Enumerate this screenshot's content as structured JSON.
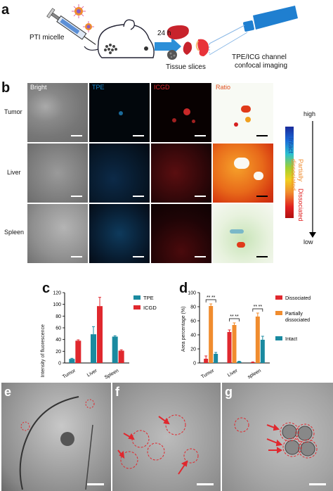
{
  "panel_a": {
    "label": "a",
    "micelle_text": "PTI micelle",
    "time_text": "24 h",
    "slices_text": "Tissue slices",
    "imaging_text_1": "TPE/ICG channel",
    "imaging_text_2": "confocal imaging"
  },
  "panel_b": {
    "label": "b",
    "columns": [
      "Bright",
      "TPE",
      "ICGD",
      "Ratio"
    ],
    "rows": [
      "Tumor",
      "Liver",
      "Spleen"
    ],
    "colorbar": {
      "high": "high",
      "low": "low",
      "intact": "Intact",
      "partially_1": "Partially",
      "partially_2": "dissociated",
      "dissociated": "Dissociated"
    }
  },
  "chart_c": {
    "label": "c",
    "chart_data": {
      "type": "bar",
      "ylabel": "Intensity of fluorescence",
      "categories": [
        "Tumor",
        "Liver",
        "Spleen"
      ],
      "ylim": [
        0,
        120
      ],
      "yticks": [
        0,
        20,
        40,
        60,
        80,
        100,
        120
      ],
      "series": [
        {
          "name": "TPE",
          "color": "#1a8aa0",
          "values": [
            7,
            49,
            45
          ],
          "errors": [
            1,
            13,
            1.5
          ]
        },
        {
          "name": "ICGD",
          "color": "#e0282e",
          "values": [
            38,
            97,
            21
          ],
          "errors": [
            1.5,
            15,
            1.5
          ]
        }
      ],
      "legend_position": "top-right"
    }
  },
  "chart_d": {
    "label": "d",
    "chart_data": {
      "type": "bar",
      "ylabel": "Area percentage (%)",
      "categories": [
        "Tumor",
        "Liver",
        "spleen"
      ],
      "ylim": [
        0,
        100
      ],
      "yticks": [
        0,
        20,
        40,
        60,
        80,
        100
      ],
      "series": [
        {
          "name": "Dissociated",
          "color": "#e0282e",
          "values": [
            6,
            44,
            1
          ],
          "errors": [
            4,
            3,
            0.5
          ]
        },
        {
          "name": "Partially dissociated",
          "color": "#f08c2e",
          "values": [
            81,
            54,
            66
          ],
          "errors": [
            3,
            3,
            5
          ]
        },
        {
          "name": "Intact",
          "color": "#1a8aa0",
          "values": [
            13,
            2,
            33
          ],
          "errors": [
            2,
            0.5,
            5
          ]
        }
      ],
      "significance": "**",
      "legend_position": "right"
    }
  },
  "panel_efg": {
    "labels": [
      "e",
      "f",
      "g"
    ]
  },
  "colors": {
    "tpe": "#1a8aa0",
    "icgd": "#e0282e",
    "partial": "#f08c2e",
    "arrow": "#e0282e"
  }
}
